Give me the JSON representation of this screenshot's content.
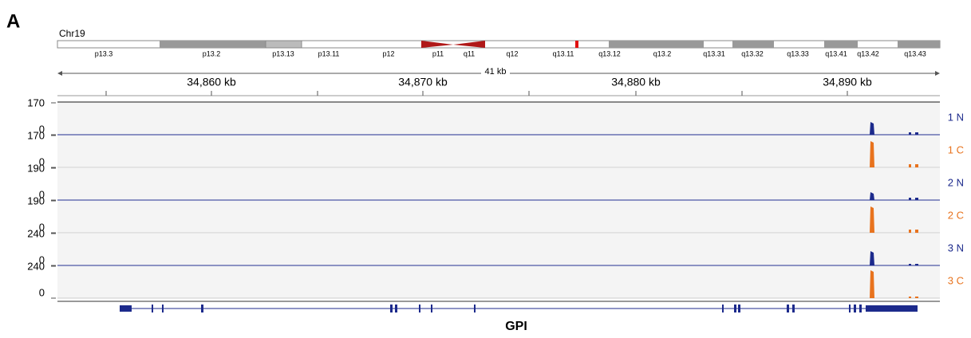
{
  "panel_label": "A",
  "chromosome": {
    "name": "Chr19",
    "bands": [
      "p13.3",
      "p13.2",
      "p13.13",
      "p13.11",
      "p12",
      "p11",
      "q11",
      "q12",
      "q13.11",
      "q13.12",
      "q13.2",
      "q13.31",
      "q13.32",
      "q13.33",
      "q13.41",
      "q13.42",
      "q13.43"
    ]
  },
  "ruler": {
    "span": "41 kb",
    "ticks": [
      "34,860 kb",
      "34,870 kb",
      "34,880 kb",
      "34,890 kb"
    ]
  },
  "tracks": [
    {
      "name": "1 N",
      "max": "170",
      "min": "0",
      "color": "#1c2a8c"
    },
    {
      "name": "1 C",
      "max": "170",
      "min": "0",
      "color": "#e8731e"
    },
    {
      "name": "2 N",
      "max": "190",
      "min": "0",
      "color": "#1c2a8c"
    },
    {
      "name": "2 C",
      "max": "190",
      "min": "0",
      "color": "#e8731e"
    },
    {
      "name": "3 N",
      "max": "240",
      "min": "0",
      "color": "#1c2a8c"
    },
    {
      "name": "3 C",
      "max": "240",
      "min": "0",
      "color": "#e8731e"
    }
  ],
  "gene": {
    "name": "GPI"
  }
}
